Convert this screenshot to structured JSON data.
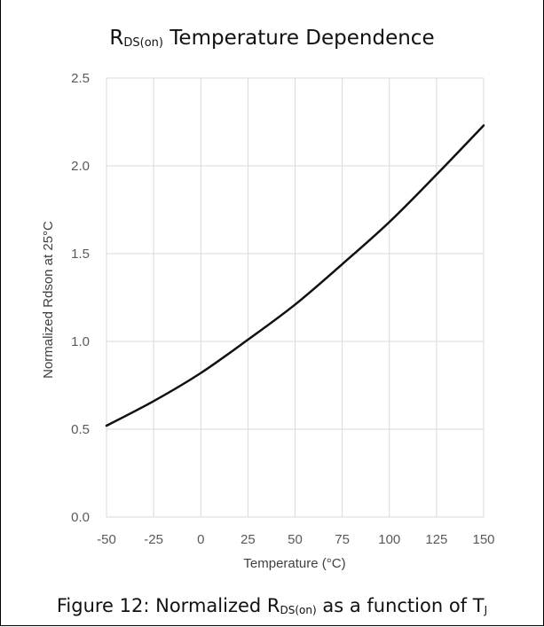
{
  "chart_data": {
    "type": "line",
    "title_main": "R",
    "title_sub": "DS(on)",
    "title_rest": " Temperature Dependence",
    "xlabel": "Temperature (°C)",
    "ylabel": "Normalized Rdson at 25°C",
    "xlim": [
      -50,
      150
    ],
    "ylim": [
      0,
      2.5
    ],
    "xticks": [
      "-50",
      "-25",
      "0",
      "25",
      "50",
      "75",
      "100",
      "125",
      "150"
    ],
    "yticks": [
      "0.0",
      "0.5",
      "1.0",
      "1.5",
      "2.0",
      "2.5"
    ],
    "grid": true,
    "line_color": "#111111",
    "series": [
      {
        "x": [
          -50,
          -25,
          0,
          25,
          50,
          75,
          100,
          125,
          150
        ],
        "values": [
          0.52,
          0.66,
          0.82,
          1.01,
          1.21,
          1.44,
          1.68,
          1.95,
          2.23
        ]
      }
    ]
  },
  "caption": {
    "prefix": "Figure 12: Normalized R",
    "sub1": "DS(on)",
    "middle": " as a function of T",
    "sub2": "J"
  }
}
